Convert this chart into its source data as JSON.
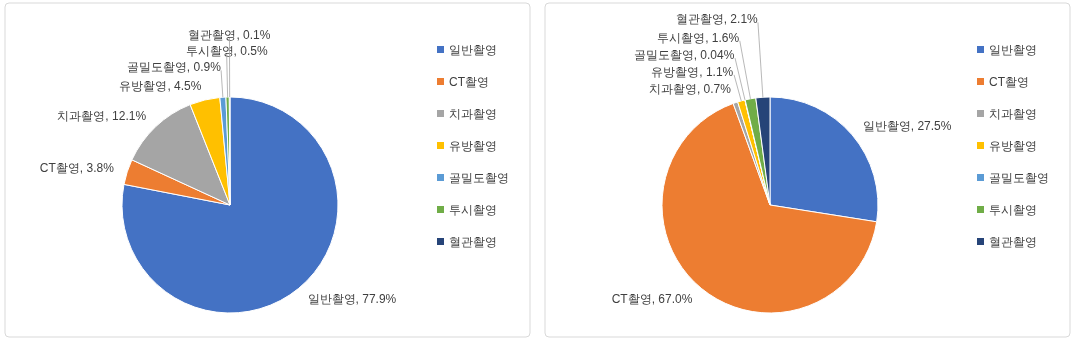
{
  "chart_data": [
    {
      "type": "pie",
      "categories": [
        "일반촬영",
        "CT촬영",
        "치과촬영",
        "유방촬영",
        "골밀도촬영",
        "투시촬영",
        "혈관촬영"
      ],
      "values": [
        77.9,
        3.8,
        12.1,
        4.5,
        0.9,
        0.5,
        0.1
      ],
      "colors": [
        "#4472c4",
        "#ed7d31",
        "#a5a5a5",
        "#ffc000",
        "#5b9bd5",
        "#70ad47",
        "#264478"
      ],
      "value_labels": [
        "일반촬영, 77.9%",
        "CT촬영, 3.8%",
        "치과촬영, 12.1%",
        "유방촬영, 4.5%",
        "골밀도촬영, 0.9%",
        "투시촬영, 0.5%",
        "혈관촬영, 0.1%"
      ],
      "legend": "right"
    },
    {
      "type": "pie",
      "categories": [
        "일반촬영",
        "CT촬영",
        "치과촬영",
        "유방촬영",
        "골밀도촬영",
        "투시촬영",
        "혈관촬영"
      ],
      "values": [
        27.5,
        67.0,
        0.7,
        1.1,
        0.04,
        1.6,
        2.1
      ],
      "colors": [
        "#4472c4",
        "#ed7d31",
        "#a5a5a5",
        "#ffc000",
        "#5b9bd5",
        "#70ad47",
        "#264478"
      ],
      "value_labels": [
        "일반촬영, 27.5%",
        "CT촬영, 67.0%",
        "치과촬영, 0.7%",
        "유방촬영, 1.1%",
        "골밀도촬영, 0.04%",
        "투시촬영, 1.6%",
        "혈관촬영, 2.1%"
      ],
      "legend": "right"
    }
  ]
}
